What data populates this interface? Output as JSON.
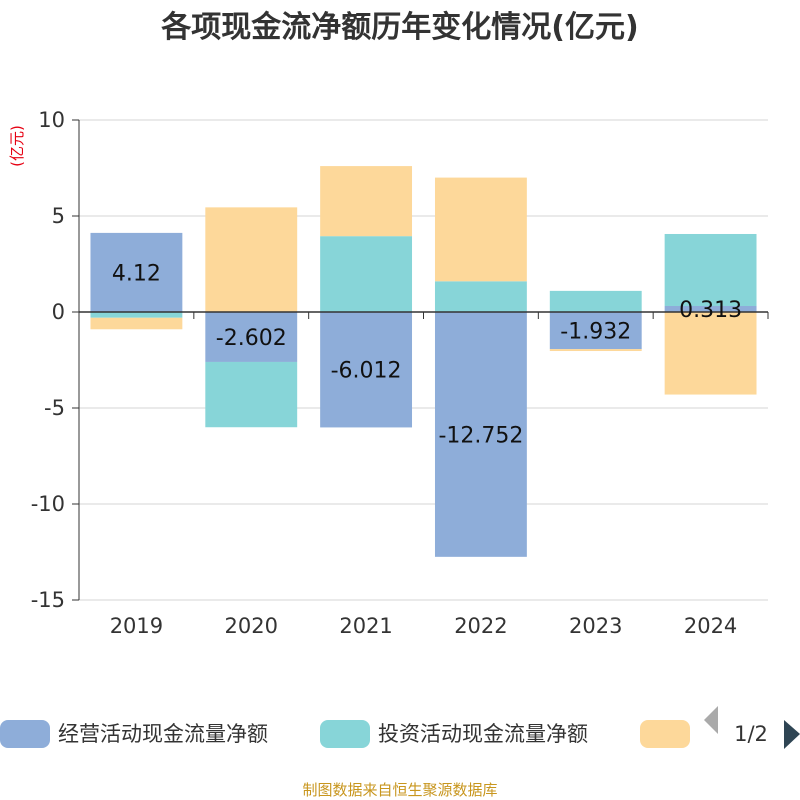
{
  "title": "各项现金流净额历年变化情况(亿元)",
  "unit_label": "(亿元)",
  "source": "制图数据来自恒生聚源数据库",
  "legend_pager": "1/2",
  "colors": {
    "operating": "#8eadd9",
    "investing": "#87d5d8",
    "financing": "#fdd89a",
    "unit": "#e60012",
    "source": "#c8961e"
  },
  "chart_data": {
    "type": "bar",
    "stacked": true,
    "categories": [
      "2019",
      "2020",
      "2021",
      "2022",
      "2023",
      "2024"
    ],
    "ylim": [
      -15,
      10
    ],
    "yticks": [
      10,
      5,
      0,
      -5,
      -10,
      -15
    ],
    "grid": true,
    "legend_position": "bottom",
    "series": [
      {
        "name": "经营活动现金流量净额",
        "color_key": "operating",
        "values": [
          4.12,
          -2.602,
          -6.012,
          -12.752,
          -1.932,
          0.313
        ],
        "labels": [
          "4.12",
          "-2.602",
          "-6.012",
          "-12.752",
          "-1.932",
          "0.313"
        ]
      },
      {
        "name": "投资活动现金流量净额",
        "color_key": "investing",
        "values": [
          -0.3,
          -3.4,
          3.95,
          1.6,
          1.1,
          3.75
        ]
      },
      {
        "name": "",
        "color_key": "financing",
        "values": [
          -0.6,
          5.45,
          3.65,
          5.4,
          -0.1,
          -4.3
        ]
      }
    ]
  }
}
